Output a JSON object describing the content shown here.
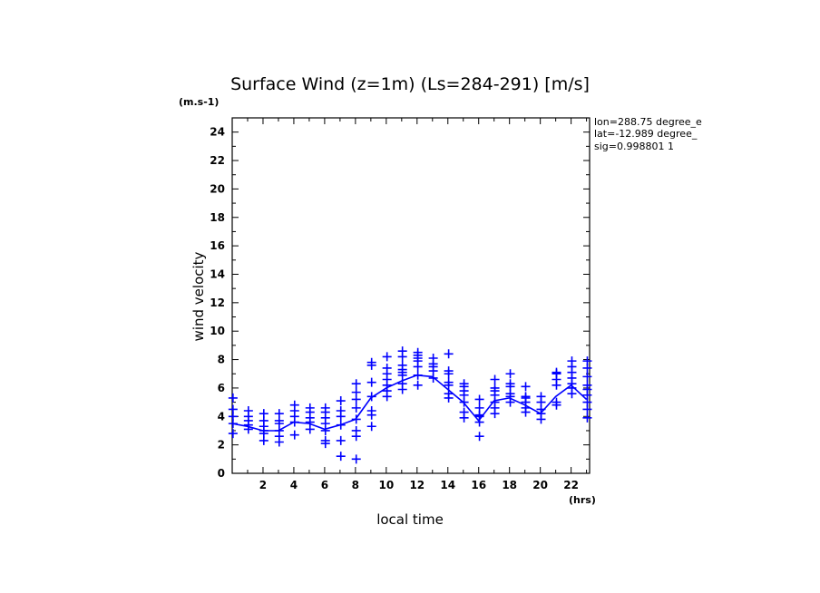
{
  "chart_data": {
    "type": "scatter",
    "title": "Surface Wind (z=1m) (Ls=284-291) [m/s]",
    "yunit": "(m.s-1)",
    "xunit": "(hrs)",
    "xlabel": "local time",
    "ylabel": "wind velocity",
    "xlim": [
      0,
      23.2
    ],
    "ylim": [
      0,
      25
    ],
    "xticks": [
      2,
      4,
      6,
      8,
      10,
      12,
      14,
      16,
      18,
      20,
      22
    ],
    "yticks": [
      0,
      2,
      4,
      6,
      8,
      10,
      12,
      14,
      16,
      18,
      20,
      22,
      24
    ],
    "annotations": [
      "lon=288.75 degree_e",
      "lat=-12.989 degree_",
      "sig=0.998801 1"
    ],
    "color": "#0000ff",
    "series": [
      {
        "type": "line",
        "x": [
          0,
          1,
          2,
          3,
          4,
          5,
          6,
          7,
          8,
          9,
          10,
          11,
          12,
          13,
          14,
          15,
          16,
          17,
          18,
          19,
          20,
          21,
          22,
          23
        ],
        "values": [
          3.5,
          3.3,
          3.0,
          3.0,
          3.6,
          3.5,
          3.1,
          3.4,
          3.8,
          5.3,
          6.0,
          6.5,
          6.9,
          6.8,
          5.9,
          5.0,
          3.7,
          5.1,
          5.3,
          4.8,
          4.2,
          5.4,
          6.2,
          5.2
        ]
      },
      {
        "type": "scatter",
        "marker": "+",
        "points": [
          [
            0.05,
            2.8
          ],
          [
            0.05,
            3.5
          ],
          [
            0.05,
            4.0
          ],
          [
            0.05,
            4.5
          ],
          [
            0.05,
            5.3
          ],
          [
            1.05,
            3.1
          ],
          [
            1.05,
            3.4
          ],
          [
            1.05,
            3.7
          ],
          [
            1.05,
            4.0
          ],
          [
            1.05,
            4.4
          ],
          [
            2.05,
            2.3
          ],
          [
            2.05,
            2.8
          ],
          [
            2.05,
            3.0
          ],
          [
            2.05,
            3.3
          ],
          [
            2.05,
            3.7
          ],
          [
            2.05,
            4.2
          ],
          [
            3.05,
            2.2
          ],
          [
            3.05,
            2.6
          ],
          [
            3.05,
            3.0
          ],
          [
            3.05,
            3.5
          ],
          [
            3.05,
            3.7
          ],
          [
            3.05,
            4.2
          ],
          [
            4.05,
            2.7
          ],
          [
            4.05,
            3.6
          ],
          [
            4.05,
            4.0
          ],
          [
            4.05,
            4.4
          ],
          [
            4.05,
            4.8
          ],
          [
            5.05,
            3.1
          ],
          [
            5.05,
            3.6
          ],
          [
            5.05,
            3.9
          ],
          [
            5.05,
            4.3
          ],
          [
            5.05,
            4.6
          ],
          [
            6.05,
            2.1
          ],
          [
            6.05,
            2.3
          ],
          [
            6.05,
            3.0
          ],
          [
            6.05,
            3.5
          ],
          [
            6.05,
            3.9
          ],
          [
            6.05,
            4.3
          ],
          [
            6.05,
            4.6
          ],
          [
            7.05,
            1.2
          ],
          [
            7.05,
            2.3
          ],
          [
            7.05,
            3.4
          ],
          [
            7.05,
            4.0
          ],
          [
            7.05,
            4.4
          ],
          [
            7.05,
            5.1
          ],
          [
            8.05,
            1.0
          ],
          [
            8.05,
            2.6
          ],
          [
            8.05,
            3.0
          ],
          [
            8.05,
            3.8
          ],
          [
            8.05,
            4.6
          ],
          [
            8.05,
            5.2
          ],
          [
            8.05,
            5.7
          ],
          [
            8.05,
            6.3
          ],
          [
            9.05,
            3.3
          ],
          [
            9.05,
            4.1
          ],
          [
            9.05,
            4.4
          ],
          [
            9.05,
            5.4
          ],
          [
            9.05,
            6.4
          ],
          [
            9.05,
            7.6
          ],
          [
            9.05,
            7.8
          ],
          [
            10.05,
            5.4
          ],
          [
            10.05,
            5.8
          ],
          [
            10.05,
            6.2
          ],
          [
            10.05,
            6.6
          ],
          [
            10.05,
            7.0
          ],
          [
            10.05,
            7.4
          ],
          [
            10.05,
            8.2
          ],
          [
            11.05,
            5.9
          ],
          [
            11.05,
            6.3
          ],
          [
            11.05,
            6.9
          ],
          [
            11.05,
            7.1
          ],
          [
            11.05,
            7.3
          ],
          [
            11.05,
            7.6
          ],
          [
            11.05,
            8.2
          ],
          [
            11.05,
            8.6
          ],
          [
            12.05,
            6.2
          ],
          [
            12.05,
            6.9
          ],
          [
            12.05,
            7.5
          ],
          [
            12.05,
            7.9
          ],
          [
            12.05,
            8.1
          ],
          [
            12.05,
            8.3
          ],
          [
            12.05,
            8.5
          ],
          [
            13.05,
            6.7
          ],
          [
            13.05,
            7.2
          ],
          [
            13.05,
            7.5
          ],
          [
            13.05,
            7.7
          ],
          [
            13.05,
            8.1
          ],
          [
            14.05,
            5.3
          ],
          [
            14.05,
            5.6
          ],
          [
            14.05,
            6.2
          ],
          [
            14.05,
            6.4
          ],
          [
            14.05,
            7.0
          ],
          [
            14.05,
            7.2
          ],
          [
            14.05,
            8.4
          ],
          [
            15.05,
            3.9
          ],
          [
            15.05,
            4.3
          ],
          [
            15.05,
            5.0
          ],
          [
            15.05,
            5.5
          ],
          [
            15.05,
            5.8
          ],
          [
            15.05,
            6.1
          ],
          [
            15.05,
            6.3
          ],
          [
            16.05,
            2.6
          ],
          [
            16.05,
            3.6
          ],
          [
            16.05,
            4.0
          ],
          [
            16.05,
            4.1
          ],
          [
            16.05,
            4.6
          ],
          [
            16.05,
            5.2
          ],
          [
            17.05,
            4.2
          ],
          [
            17.05,
            4.6
          ],
          [
            17.05,
            5.0
          ],
          [
            17.05,
            5.5
          ],
          [
            17.05,
            5.8
          ],
          [
            17.05,
            6.0
          ],
          [
            17.05,
            6.6
          ],
          [
            18.05,
            5.0
          ],
          [
            18.05,
            5.4
          ],
          [
            18.05,
            5.6
          ],
          [
            18.05,
            6.1
          ],
          [
            18.05,
            6.3
          ],
          [
            18.05,
            7.0
          ],
          [
            19.05,
            4.3
          ],
          [
            19.05,
            4.6
          ],
          [
            19.05,
            5.0
          ],
          [
            19.05,
            5.3
          ],
          [
            19.05,
            5.4
          ],
          [
            19.05,
            6.1
          ],
          [
            20.05,
            3.8
          ],
          [
            20.05,
            4.2
          ],
          [
            20.05,
            4.5
          ],
          [
            20.05,
            5.0
          ],
          [
            20.05,
            5.4
          ],
          [
            21.05,
            4.8
          ],
          [
            21.05,
            5.0
          ],
          [
            21.05,
            6.2
          ],
          [
            21.05,
            6.6
          ],
          [
            21.05,
            7.0
          ],
          [
            21.05,
            7.1
          ],
          [
            22.05,
            5.6
          ],
          [
            22.05,
            6.0
          ],
          [
            22.05,
            6.3
          ],
          [
            22.05,
            6.7
          ],
          [
            22.05,
            7.1
          ],
          [
            22.05,
            7.5
          ],
          [
            22.05,
            7.9
          ],
          [
            23.05,
            3.9
          ],
          [
            23.05,
            4.5
          ],
          [
            23.05,
            5.0
          ],
          [
            23.05,
            5.5
          ],
          [
            23.05,
            5.9
          ],
          [
            23.05,
            6.2
          ],
          [
            23.05,
            6.8
          ],
          [
            23.05,
            7.4
          ],
          [
            23.05,
            7.9
          ]
        ]
      }
    ]
  }
}
